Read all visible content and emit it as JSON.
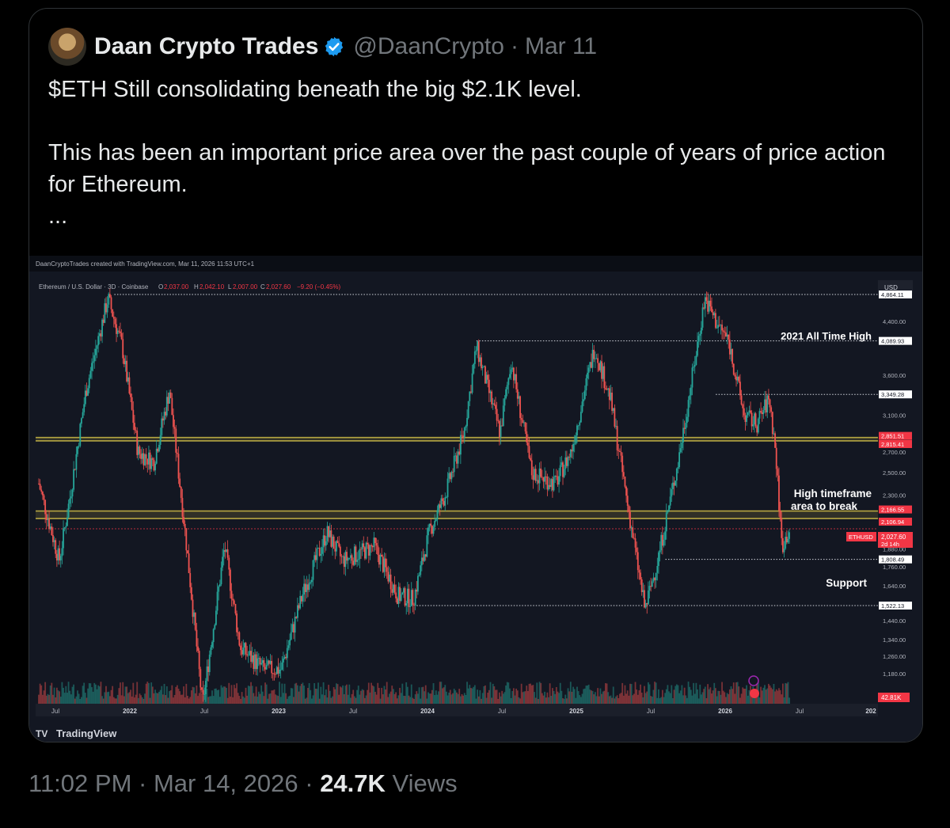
{
  "tweet": {
    "author_name": "Daan Crypto Trades",
    "handle": "@DaanCrypto",
    "separator": "·",
    "date": "Mar 11",
    "text_line1": "$ETH Still consolidating beneath the big $2.1K level.",
    "text_line2": "This has been an important price area over the past couple of years of price action for Ethereum.",
    "text_more": "...",
    "icons": {
      "avatar": "avatar",
      "verified": "verified-badge-icon"
    },
    "colors": {
      "verified": "#1d9bf0",
      "text": "#e7e9ea",
      "muted": "#71767b"
    }
  },
  "footer": {
    "time": "11:02 PM",
    "sep1": " · ",
    "date": "Mar 14, 2026",
    "sep2": " · ",
    "views_count": "24.7K",
    "views_label": " Views"
  },
  "chart": {
    "credit": "DaanCryptoTrades created with TradingView.com, Mar 11, 2026 11:53 UTC+1",
    "symbol": "Ethereum / U.S. Dollar · 3D · Coinbase",
    "o_label": "O",
    "o": "2,037.00",
    "h_label": "H",
    "h": "2,042.10",
    "l_label": "L",
    "l": "2,007.00",
    "c_label": "C",
    "c": "2,027.60",
    "chg": "−9.20 (−0.45%)",
    "currency": "USD",
    "ann_ath": "2021 All Time High",
    "ann_htf_1": "High timeframe",
    "ann_htf_2": "area to break",
    "ann_support": "Support",
    "current_tag": "ETHUSD",
    "current_value": "2,027.60",
    "countdown": "2d 14h",
    "volume_tag": "42.81K",
    "logo_text": "TradingView",
    "colors": {
      "bg": "#131722",
      "up": "#26a69a",
      "down": "#ef5350",
      "band": "#b5a642",
      "label_red": "#f23645"
    }
  },
  "chart_data": {
    "type": "candlestick",
    "series_name": "ETHUSD",
    "price_scale_labels": [
      "4,864.11",
      "4,400.00",
      "4,089.93",
      "3,600.00",
      "3,349.28",
      "3,100.00",
      "2,851.51",
      "2,815.41",
      "2,700.00",
      "2,500.00",
      "2,300.00",
      "2,166.55",
      "2,106.94",
      "2,027.60",
      "1,880.00",
      "1,808.49",
      "1,760.00",
      "1,640.00",
      "1,522.13",
      "1,440.00",
      "1,340.00",
      "1,260.00",
      "1,180.00"
    ],
    "x_tick_labels": [
      "Jul",
      "2022",
      "Jul",
      "2023",
      "Jul",
      "2024",
      "Jul",
      "2025",
      "Jul",
      "2026",
      "Jul",
      "202"
    ],
    "levels": [
      {
        "price": 4864.11,
        "style": "dotted"
      },
      {
        "price": 4089.93,
        "style": "dotted"
      },
      {
        "price": 3349.28,
        "style": "dotted"
      },
      {
        "price": 2851.51,
        "style": "band"
      },
      {
        "price": 2815.41,
        "style": "band"
      },
      {
        "price": 2166.55,
        "style": "band"
      },
      {
        "price": 2106.94,
        "style": "band"
      },
      {
        "price": 1808.49,
        "style": "dotted"
      },
      {
        "price": 1522.13,
        "style": "dotted"
      }
    ],
    "path": [
      {
        "t": 2021.42,
        "p": 2400
      },
      {
        "t": 2021.55,
        "p": 1800
      },
      {
        "t": 2021.62,
        "p": 2300
      },
      {
        "t": 2021.72,
        "p": 3400
      },
      {
        "t": 2021.86,
        "p": 4800
      },
      {
        "t": 2021.95,
        "p": 4000
      },
      {
        "t": 2022.05,
        "p": 2700
      },
      {
        "t": 2022.15,
        "p": 2600
      },
      {
        "t": 2022.25,
        "p": 3400
      },
      {
        "t": 2022.35,
        "p": 2000
      },
      {
        "t": 2022.46,
        "p": 1050
      },
      {
        "t": 2022.6,
        "p": 1900
      },
      {
        "t": 2022.7,
        "p": 1300
      },
      {
        "t": 2022.85,
        "p": 1200
      },
      {
        "t": 2022.96,
        "p": 1200
      },
      {
        "t": 2023.1,
        "p": 1600
      },
      {
        "t": 2023.25,
        "p": 2000
      },
      {
        "t": 2023.35,
        "p": 1800
      },
      {
        "t": 2023.55,
        "p": 1900
      },
      {
        "t": 2023.7,
        "p": 1580
      },
      {
        "t": 2023.8,
        "p": 1560
      },
      {
        "t": 2023.9,
        "p": 2000
      },
      {
        "t": 2024.0,
        "p": 2300
      },
      {
        "t": 2024.12,
        "p": 2900
      },
      {
        "t": 2024.2,
        "p": 4000
      },
      {
        "t": 2024.35,
        "p": 2900
      },
      {
        "t": 2024.42,
        "p": 3800
      },
      {
        "t": 2024.55,
        "p": 2500
      },
      {
        "t": 2024.7,
        "p": 2400
      },
      {
        "t": 2024.8,
        "p": 2700
      },
      {
        "t": 2024.95,
        "p": 4000
      },
      {
        "t": 2025.05,
        "p": 3300
      },
      {
        "t": 2025.15,
        "p": 2300
      },
      {
        "t": 2025.27,
        "p": 1500
      },
      {
        "t": 2025.35,
        "p": 1800
      },
      {
        "t": 2025.48,
        "p": 2600
      },
      {
        "t": 2025.58,
        "p": 3700
      },
      {
        "t": 2025.65,
        "p": 4800
      },
      {
        "t": 2025.72,
        "p": 4400
      },
      {
        "t": 2025.8,
        "p": 4100
      },
      {
        "t": 2025.9,
        "p": 3100
      },
      {
        "t": 2025.98,
        "p": 3000
      },
      {
        "t": 2026.06,
        "p": 3300
      },
      {
        "t": 2026.1,
        "p": 2700
      },
      {
        "t": 2026.14,
        "p": 1900
      },
      {
        "t": 2026.19,
        "p": 2027.6
      }
    ]
  }
}
